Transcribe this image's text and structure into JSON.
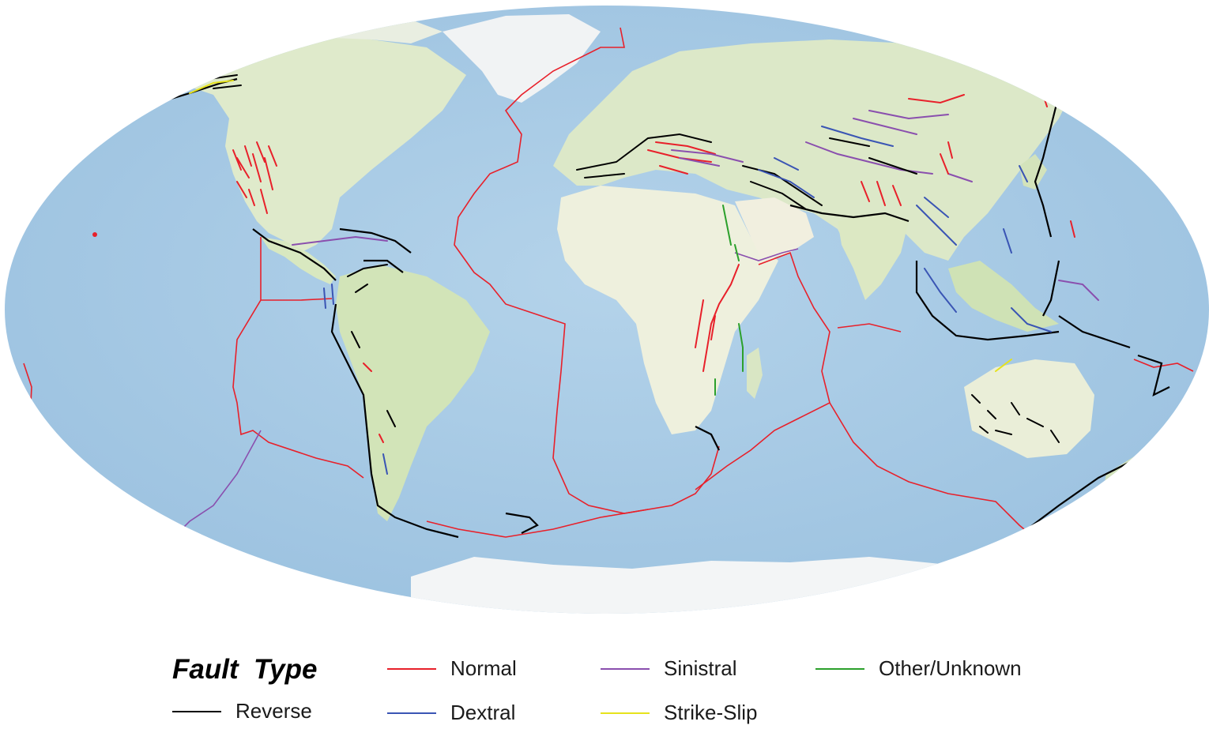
{
  "legend": {
    "title": "Fault  Type",
    "items": [
      {
        "key": "reverse",
        "label": "Reverse",
        "color": "#000000"
      },
      {
        "key": "normal",
        "label": "Normal",
        "color": "#e8202a"
      },
      {
        "key": "dextral",
        "label": "Dextral",
        "color": "#3a55b4"
      },
      {
        "key": "sinistral",
        "label": "Sinistral",
        "color": "#8a4fae"
      },
      {
        "key": "strike_slip",
        "label": "Strike-Slip",
        "color": "#e6e21c"
      },
      {
        "key": "other_unknown",
        "label": "Other/Unknown",
        "color": "#2ca02c"
      }
    ]
  },
  "map": {
    "ocean_color": "#a9cbe6",
    "land_color": "#dde9c7",
    "ice_color": "#f2f4f5",
    "plate_boundary_colors": [
      "#e8202a",
      "#8a4fae"
    ]
  }
}
